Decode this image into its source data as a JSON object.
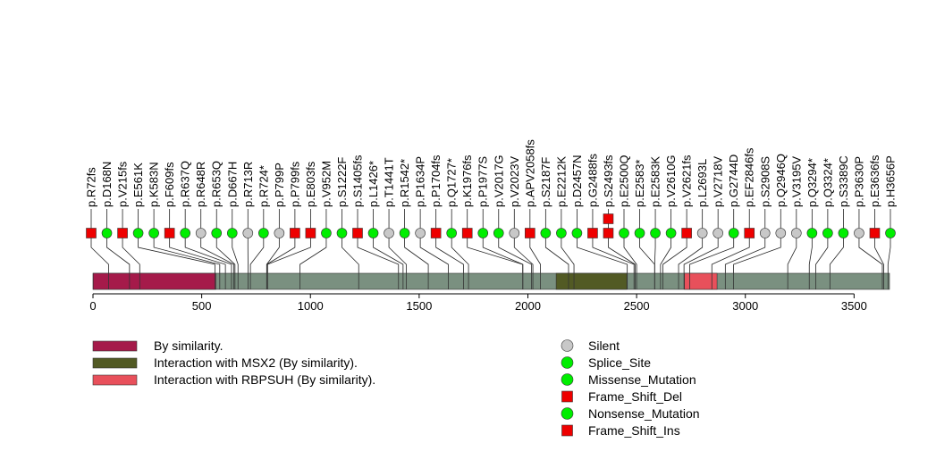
{
  "chart_data": {
    "type": "lollipop",
    "protein_length": 3663,
    "x_ticks": [
      0,
      500,
      1000,
      1500,
      2000,
      2500,
      3000,
      3500
    ],
    "x_tick_labels": [
      "0",
      "500",
      "1000",
      "1500",
      "2000",
      "2500",
      "3000",
      "3500"
    ],
    "xlim": [
      0,
      3663
    ],
    "domain_regions": [
      {
        "name": "By similarity.",
        "start": 1,
        "end": 565,
        "color": "#a51a4a"
      },
      {
        "name": "Interaction with MSX2 (By similarity).",
        "start": 2130,
        "end": 2455,
        "color": "#525a24"
      },
      {
        "name": "Interaction with RBPSUH (By similarity).",
        "start": 2720,
        "end": 2870,
        "color": "#e8505b"
      }
    ],
    "backbone_color": "#7a9080",
    "mutation_types": {
      "Silent": {
        "shape": "circle",
        "color": "#c8c8c8"
      },
      "Splice_Site": {
        "shape": "circle",
        "color": "#00ee00"
      },
      "Missense_Mutation": {
        "shape": "circle",
        "color": "#00ee00"
      },
      "Frame_Shift_Del": {
        "shape": "square",
        "color": "#ee0000"
      },
      "Nonsense_Mutation": {
        "shape": "circle",
        "color": "#00ee00"
      },
      "Frame_Shift_Ins": {
        "shape": "square",
        "color": "#ee0000"
      }
    },
    "legend_domains": [
      {
        "label": "By similarity.",
        "color": "#a51a4a"
      },
      {
        "label": "Interaction with MSX2 (By similarity).",
        "color": "#525a24"
      },
      {
        "label": "Interaction with RBPSUH (By similarity).",
        "color": "#e8505b"
      }
    ],
    "legend_mutations": [
      {
        "label": "Silent",
        "shape": "circle",
        "color": "#c8c8c8"
      },
      {
        "label": "Splice_Site",
        "shape": "circle",
        "color": "#00ee00"
      },
      {
        "label": "Missense_Mutation",
        "shape": "circle",
        "color": "#00ee00"
      },
      {
        "label": "Frame_Shift_Del",
        "shape": "square",
        "color": "#ee0000"
      },
      {
        "label": "Nonsense_Mutation",
        "shape": "circle",
        "color": "#00ee00"
      },
      {
        "label": "Frame_Shift_Ins",
        "shape": "square",
        "color": "#ee0000"
      }
    ],
    "mutations": [
      {
        "label": "p.R72fs",
        "position": 72,
        "type": "Frame_Shift_Del",
        "count": 1
      },
      {
        "label": "p.D168N",
        "position": 168,
        "type": "Missense_Mutation",
        "count": 1
      },
      {
        "label": "p.V215fs",
        "position": 215,
        "type": "Frame_Shift_Del",
        "count": 1
      },
      {
        "label": "p.E561K",
        "position": 561,
        "type": "Missense_Mutation",
        "count": 1
      },
      {
        "label": "p.K583N",
        "position": 583,
        "type": "Missense_Mutation",
        "count": 1
      },
      {
        "label": "p.F609fs",
        "position": 609,
        "type": "Frame_Shift_Del",
        "count": 1
      },
      {
        "label": "p.R637Q",
        "position": 637,
        "type": "Missense_Mutation",
        "count": 1
      },
      {
        "label": "p.R648R",
        "position": 648,
        "type": "Silent",
        "count": 1
      },
      {
        "label": "p.R653Q",
        "position": 653,
        "type": "Missense_Mutation",
        "count": 1
      },
      {
        "label": "p.D667H",
        "position": 667,
        "type": "Missense_Mutation",
        "count": 1
      },
      {
        "label": "p.R713R",
        "position": 713,
        "type": "Silent",
        "count": 1
      },
      {
        "label": "p.R724*",
        "position": 724,
        "type": "Nonsense_Mutation",
        "count": 1
      },
      {
        "label": "p.P799P",
        "position": 799,
        "type": "Silent",
        "count": 1
      },
      {
        "label": "p.P799fs",
        "position": 799,
        "type": "Frame_Shift_Del",
        "count": 1
      },
      {
        "label": "p.E803fs",
        "position": 803,
        "type": "Frame_Shift_Del",
        "count": 1
      },
      {
        "label": "p.V952M",
        "position": 952,
        "type": "Missense_Mutation",
        "count": 1
      },
      {
        "label": "p.S1222F",
        "position": 1222,
        "type": "Missense_Mutation",
        "count": 1
      },
      {
        "label": "p.S1405fs",
        "position": 1405,
        "type": "Frame_Shift_Del",
        "count": 1
      },
      {
        "label": "p.L1426*",
        "position": 1426,
        "type": "Nonsense_Mutation",
        "count": 1
      },
      {
        "label": "p.T1441T",
        "position": 1441,
        "type": "Silent",
        "count": 1
      },
      {
        "label": "p.R1542*",
        "position": 1542,
        "type": "Nonsense_Mutation",
        "count": 1
      },
      {
        "label": "p.P1634P",
        "position": 1634,
        "type": "Silent",
        "count": 1
      },
      {
        "label": "p.P1704fs",
        "position": 1704,
        "type": "Frame_Shift_Del",
        "count": 1
      },
      {
        "label": "p.Q1727*",
        "position": 1727,
        "type": "Nonsense_Mutation",
        "count": 1
      },
      {
        "label": "p.K1976fs",
        "position": 1976,
        "type": "Frame_Shift_Del",
        "count": 1
      },
      {
        "label": "p.P1977S",
        "position": 1977,
        "type": "Missense_Mutation",
        "count": 1
      },
      {
        "label": "p.V2017G",
        "position": 2017,
        "type": "Missense_Mutation",
        "count": 1
      },
      {
        "label": "p.V2023V",
        "position": 2023,
        "type": "Silent",
        "count": 1
      },
      {
        "label": "p.APV2058fs",
        "position": 2058,
        "type": "Frame_Shift_Del",
        "count": 1
      },
      {
        "label": "p.S2187F",
        "position": 2187,
        "type": "Missense_Mutation",
        "count": 1
      },
      {
        "label": "p.E2212K",
        "position": 2212,
        "type": "Missense_Mutation",
        "count": 1
      },
      {
        "label": "p.D2457N",
        "position": 2457,
        "type": "Missense_Mutation",
        "count": 1
      },
      {
        "label": "p.G2488fs",
        "position": 2488,
        "type": "Frame_Shift_Del",
        "count": 1
      },
      {
        "label": "p.S2493fs",
        "position": 2493,
        "type": "Frame_Shift_Del",
        "count": 2
      },
      {
        "label": "p.E2500Q",
        "position": 2500,
        "type": "Missense_Mutation",
        "count": 1
      },
      {
        "label": "p.E2583*",
        "position": 2583,
        "type": "Nonsense_Mutation",
        "count": 1
      },
      {
        "label": "p.E2583K",
        "position": 2583,
        "type": "Missense_Mutation",
        "count": 1
      },
      {
        "label": "p.V2610G",
        "position": 2610,
        "type": "Missense_Mutation",
        "count": 1
      },
      {
        "label": "p.V2621fs",
        "position": 2621,
        "type": "Frame_Shift_Del",
        "count": 1
      },
      {
        "label": "p.L2693L",
        "position": 2693,
        "type": "Silent",
        "count": 1
      },
      {
        "label": "p.V2718V",
        "position": 2718,
        "type": "Silent",
        "count": 1
      },
      {
        "label": "p.G2744D",
        "position": 2744,
        "type": "Missense_Mutation",
        "count": 1
      },
      {
        "label": "p.EF2846fs",
        "position": 2846,
        "type": "Frame_Shift_Del",
        "count": 1
      },
      {
        "label": "p.S2908S",
        "position": 2908,
        "type": "Silent",
        "count": 1
      },
      {
        "label": "p.Q2946Q",
        "position": 2946,
        "type": "Silent",
        "count": 1
      },
      {
        "label": "p.V3195V",
        "position": 3195,
        "type": "Silent",
        "count": 1
      },
      {
        "label": "p.Q3294*",
        "position": 3294,
        "type": "Nonsense_Mutation",
        "count": 1
      },
      {
        "label": "p.Q3324*",
        "position": 3324,
        "type": "Nonsense_Mutation",
        "count": 1
      },
      {
        "label": "p.S3389C",
        "position": 3389,
        "type": "Missense_Mutation",
        "count": 1
      },
      {
        "label": "p.P3630P",
        "position": 3630,
        "type": "Silent",
        "count": 1
      },
      {
        "label": "p.E3636fs",
        "position": 3636,
        "type": "Frame_Shift_Del",
        "count": 1
      },
      {
        "label": "p.H3656P",
        "position": 3656,
        "type": "Missense_Mutation",
        "count": 1
      }
    ]
  }
}
